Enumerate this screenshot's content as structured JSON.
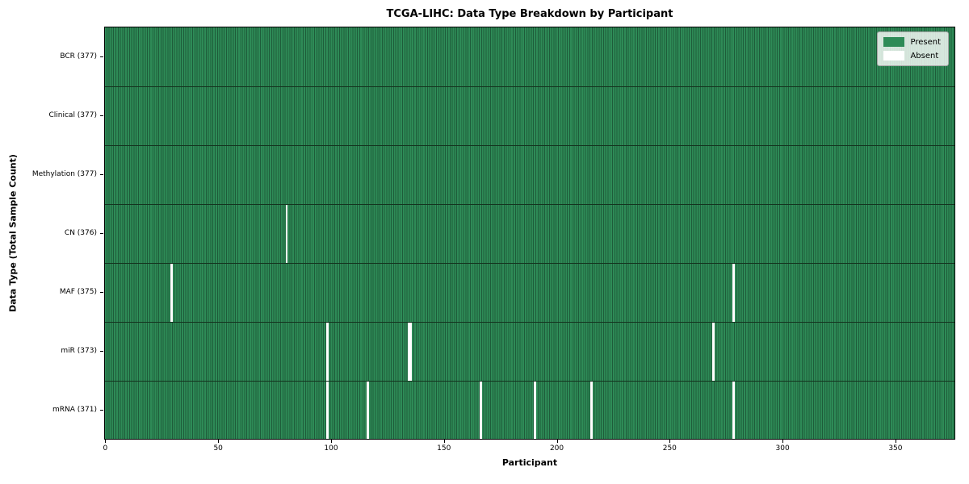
{
  "chart_data": {
    "type": "heatmap",
    "title": "TCGA-LIHC: Data Type Breakdown by Participant",
    "xlabel": "Participant",
    "ylabel": "Data Type (Total Sample Count)",
    "n_participants": 377,
    "xlim": [
      -0.5,
      376.5
    ],
    "xticks": [
      0,
      50,
      100,
      150,
      200,
      250,
      300,
      350
    ],
    "grid": false,
    "legend_position": "upper right",
    "legend": [
      {
        "name": "present",
        "label": "Present",
        "color": "#2e8b57"
      },
      {
        "name": "absent",
        "label": "Absent",
        "color": "#ffffff"
      }
    ],
    "rows": [
      {
        "data_type": "BCR",
        "label": "BCR (377)",
        "present_count": 377,
        "absent_participants": []
      },
      {
        "data_type": "Clinical",
        "label": "Clinical (377)",
        "present_count": 377,
        "absent_participants": []
      },
      {
        "data_type": "Methylation",
        "label": "Methylation (377)",
        "present_count": 377,
        "absent_participants": []
      },
      {
        "data_type": "CN",
        "label": "CN (376)",
        "present_count": 376,
        "absent_participants": [
          80
        ]
      },
      {
        "data_type": "MAF",
        "label": "MAF (375)",
        "present_count": 375,
        "absent_participants": [
          29,
          278
        ]
      },
      {
        "data_type": "miR",
        "label": "miR (373)",
        "present_count": 373,
        "absent_participants": [
          98,
          134,
          135,
          269
        ]
      },
      {
        "data_type": "mRNA",
        "label": "mRNA (371)",
        "present_count": 371,
        "absent_participants": [
          98,
          116,
          166,
          190,
          215,
          278
        ]
      }
    ],
    "colors": {
      "present": "#2e8b57",
      "present_cell_edge": "#1e5c3a",
      "absent": "#ffffff",
      "row_divider": "#14341f",
      "axis": "#000000"
    }
  }
}
